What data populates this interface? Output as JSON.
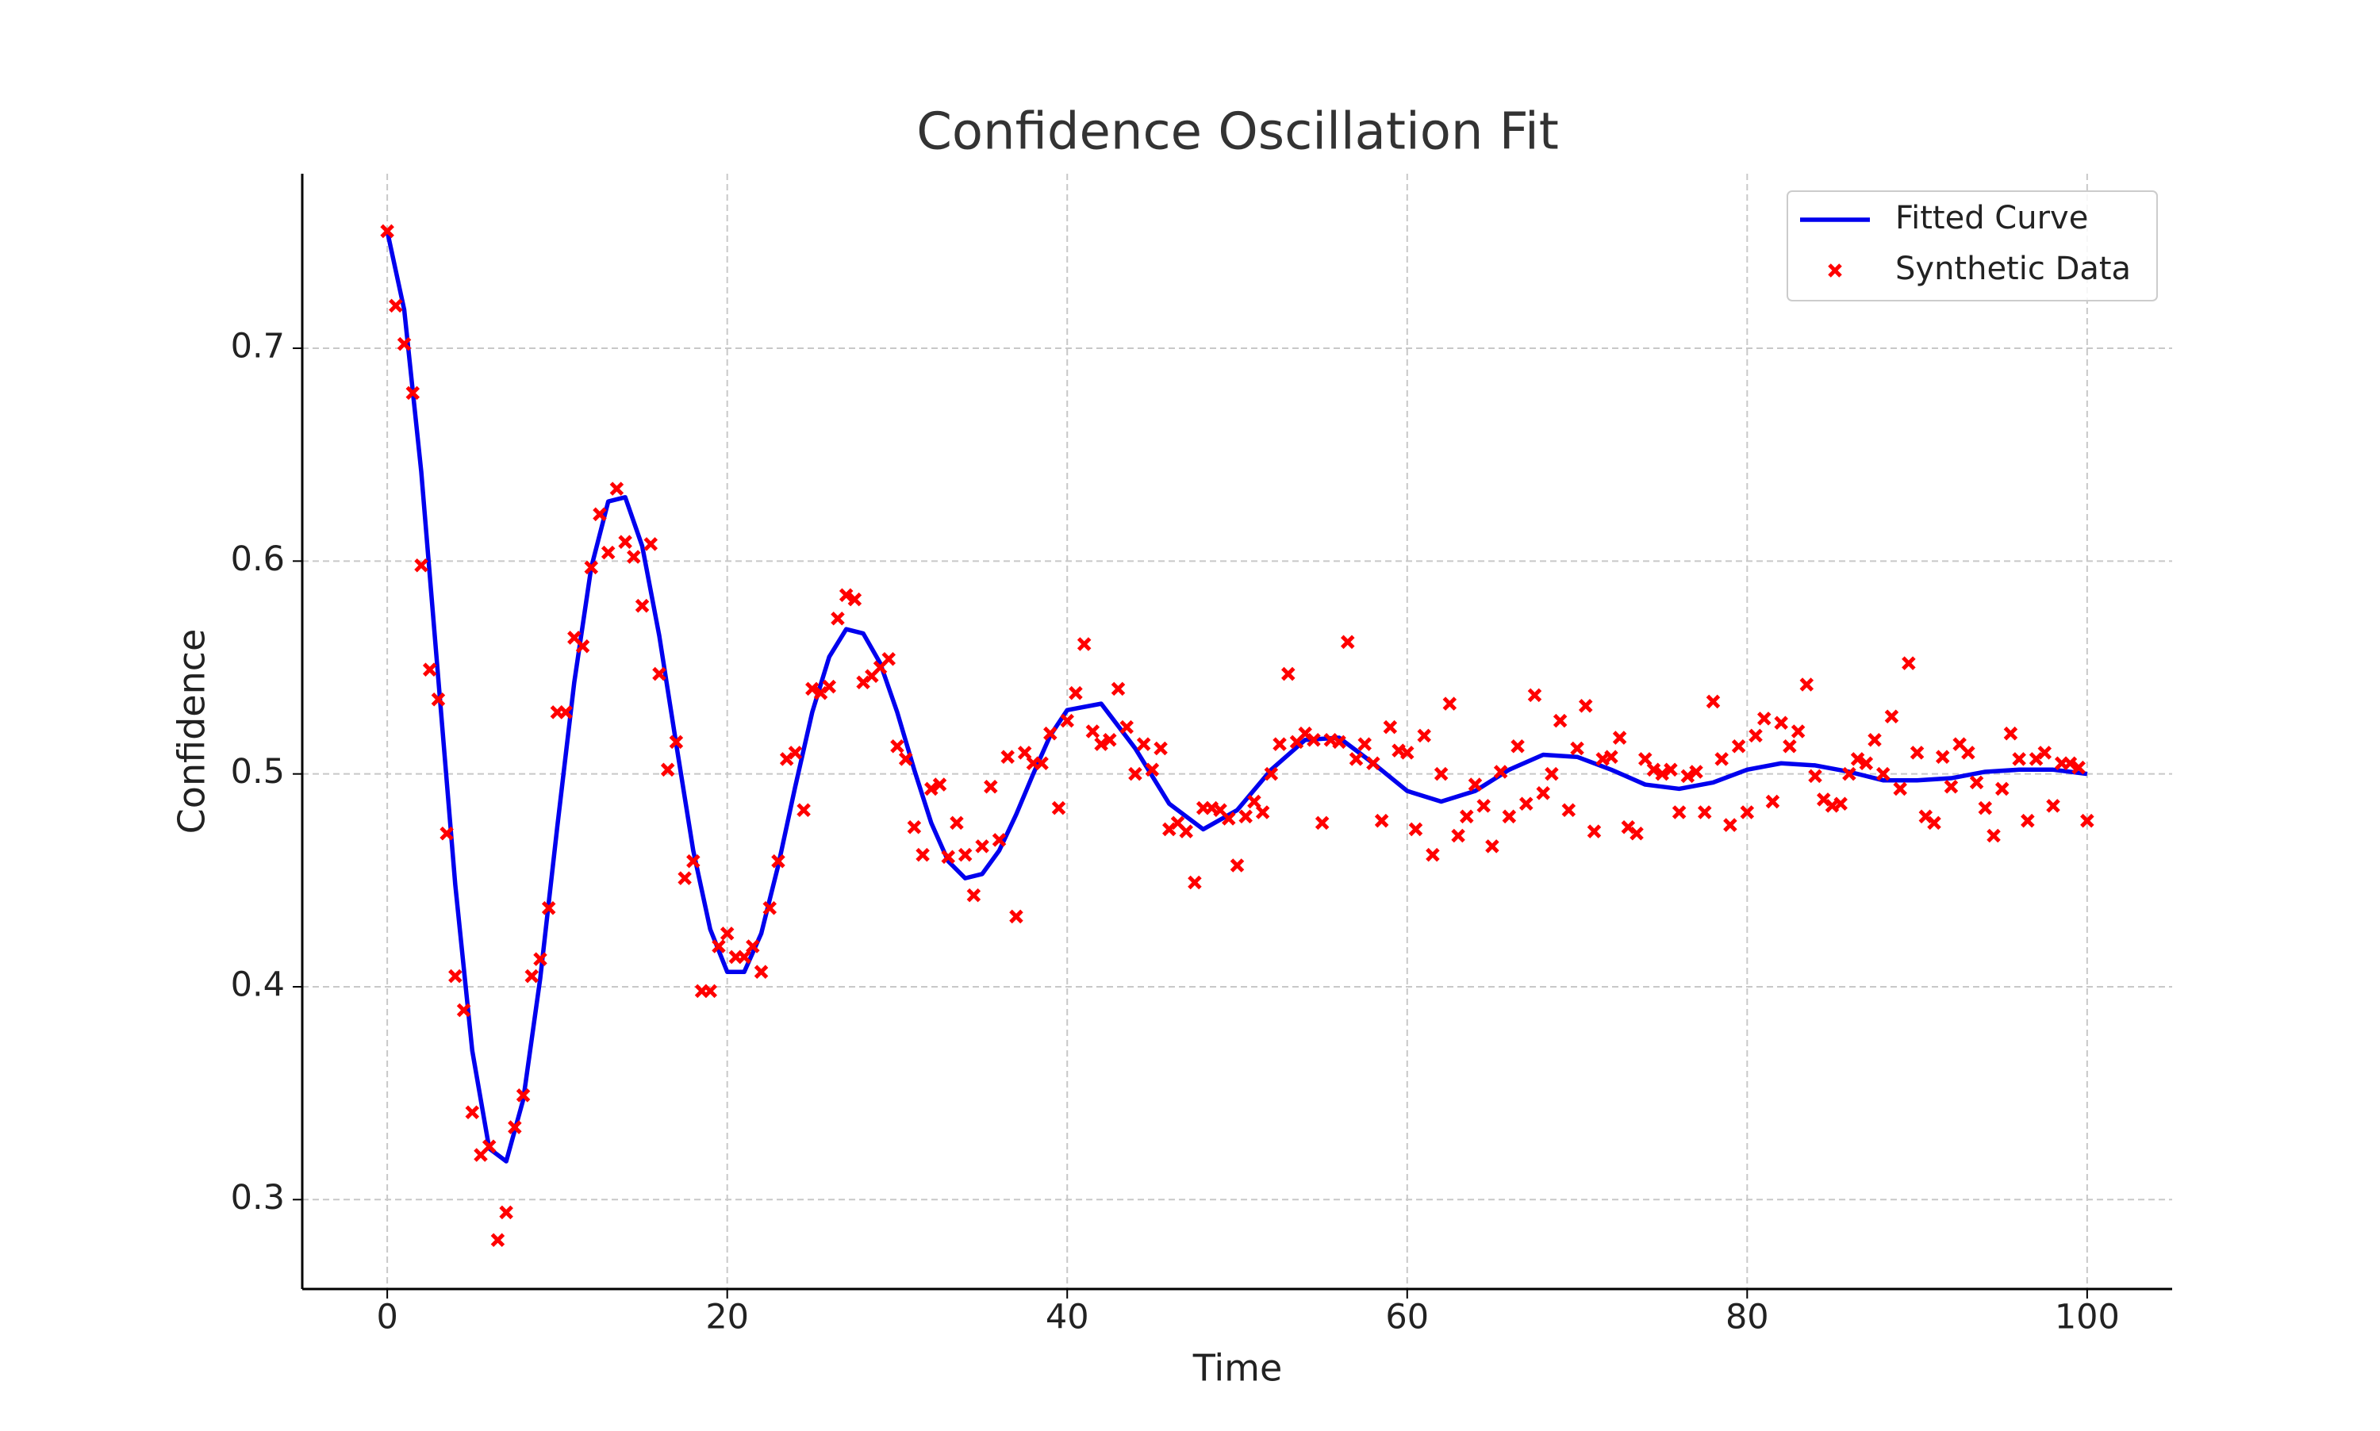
{
  "chart_data": {
    "type": "line",
    "title": "Confidence Oscillation Fit",
    "x_label": "Time",
    "y_label": "Confidence",
    "xlim": [
      -5,
      105
    ],
    "ylim": [
      0.258,
      0.782
    ],
    "xticks": [
      0,
      20,
      40,
      60,
      80,
      100
    ],
    "yticks": [
      0.3,
      0.4,
      0.5,
      0.6,
      0.7
    ],
    "grid": true,
    "legend": "upper right",
    "series": [
      {
        "name": "Fitted Curve",
        "type": "line",
        "color": "#0000ee",
        "x": [
          0,
          1,
          2,
          3,
          4,
          5,
          6,
          7,
          8,
          9,
          10,
          11,
          12,
          13,
          14,
          15,
          16,
          17,
          18,
          19,
          20,
          21,
          22,
          23,
          24,
          25,
          26,
          27,
          28,
          29,
          30,
          31,
          32,
          33,
          34,
          35,
          36,
          37,
          38,
          39,
          40,
          42,
          44,
          46,
          48,
          50,
          52,
          54,
          56,
          58,
          60,
          62,
          64,
          66,
          68,
          70,
          72,
          74,
          76,
          78,
          80,
          82,
          84,
          86,
          88,
          90,
          92,
          94,
          96,
          98,
          100
        ],
        "values": [
          0.755,
          0.718,
          0.642,
          0.545,
          0.448,
          0.37,
          0.324,
          0.318,
          0.347,
          0.404,
          0.475,
          0.543,
          0.597,
          0.628,
          0.63,
          0.607,
          0.565,
          0.514,
          0.464,
          0.427,
          0.407,
          0.407,
          0.425,
          0.457,
          0.494,
          0.529,
          0.555,
          0.568,
          0.566,
          0.552,
          0.529,
          0.502,
          0.477,
          0.459,
          0.451,
          0.453,
          0.464,
          0.481,
          0.5,
          0.518,
          0.53,
          0.533,
          0.512,
          0.486,
          0.474,
          0.483,
          0.502,
          0.516,
          0.517,
          0.505,
          0.492,
          0.487,
          0.492,
          0.502,
          0.509,
          0.508,
          0.502,
          0.495,
          0.493,
          0.496,
          0.502,
          0.505,
          0.504,
          0.501,
          0.497,
          0.497,
          0.498,
          0.501,
          0.502,
          0.502,
          0.5
        ]
      },
      {
        "name": "Synthetic Data",
        "type": "scatter",
        "color": "#ff0000",
        "x": [
          0,
          0.5,
          1,
          1.5,
          2,
          2.5,
          3,
          3.5,
          4,
          4.5,
          5,
          5.5,
          6,
          6.5,
          7,
          7.5,
          8,
          8.5,
          9,
          9.5,
          10,
          10.5,
          11,
          11.5,
          12,
          12.5,
          13,
          13.5,
          14,
          14.5,
          15,
          15.5,
          16,
          16.5,
          17,
          17.5,
          18,
          18.5,
          19,
          19.5,
          20,
          20.5,
          21,
          21.5,
          22,
          22.5,
          23,
          23.5,
          24,
          24.5,
          25,
          25.5,
          26,
          26.5,
          27,
          27.5,
          28,
          28.5,
          29,
          29.5,
          30,
          30.5,
          31,
          31.5,
          32,
          32.5,
          33,
          33.5,
          34,
          34.5,
          35,
          35.5,
          36,
          36.5,
          37,
          37.5,
          38,
          38.5,
          39,
          39.5,
          40,
          40.5,
          41,
          41.5,
          42,
          42.5,
          43,
          43.5,
          44,
          44.5,
          45,
          45.5,
          46,
          46.5,
          47,
          47.5,
          48,
          48.5,
          49,
          49.5,
          50,
          50.5,
          51,
          51.5,
          52,
          52.5,
          53,
          53.5,
          54,
          54.5,
          55,
          55.5,
          56,
          56.5,
          57,
          57.5,
          58,
          58.5,
          59,
          59.5,
          60,
          60.5,
          61,
          61.5,
          62,
          62.5,
          63,
          63.5,
          64,
          64.5,
          65,
          65.5,
          66,
          66.5,
          67,
          67.5,
          68,
          68.5,
          69,
          69.5,
          70,
          70.5,
          71,
          71.5,
          72,
          72.5,
          73,
          73.5,
          74,
          74.5,
          75,
          75.5,
          76,
          76.5,
          77,
          77.5,
          78,
          78.5,
          79,
          79.5,
          80,
          80.5,
          81,
          81.5,
          82,
          82.5,
          83,
          83.5,
          84,
          84.5,
          85,
          85.5,
          86,
          86.5,
          87,
          87.5,
          88,
          88.5,
          89,
          89.5,
          90,
          90.5,
          91,
          91.5,
          92,
          92.5,
          93,
          93.5,
          94,
          94.5,
          95,
          95.5,
          96,
          96.5,
          97,
          97.5,
          98,
          98.5,
          99,
          99.5,
          100
        ],
        "values": [
          0.755,
          0.72,
          0.702,
          0.679,
          0.598,
          0.549,
          0.535,
          0.472,
          0.405,
          0.389,
          0.341,
          0.321,
          0.325,
          0.281,
          0.294,
          0.334,
          0.349,
          0.405,
          0.413,
          0.437,
          0.529,
          0.529,
          0.564,
          0.56,
          0.597,
          0.622,
          0.604,
          0.634,
          0.609,
          0.602,
          0.579,
          0.608,
          0.547,
          0.502,
          0.515,
          0.451,
          0.459,
          0.398,
          0.398,
          0.419,
          0.425,
          0.414,
          0.414,
          0.419,
          0.407,
          0.437,
          0.459,
          0.507,
          0.51,
          0.483,
          0.54,
          0.538,
          0.541,
          0.573,
          0.584,
          0.582,
          0.543,
          0.546,
          0.55,
          0.554,
          0.513,
          0.507,
          0.475,
          0.462,
          0.493,
          0.495,
          0.461,
          0.477,
          0.462,
          0.443,
          0.466,
          0.494,
          0.469,
          0.508,
          0.433,
          0.51,
          0.505,
          0.505,
          0.519,
          0.484,
          0.525,
          0.538,
          0.561,
          0.52,
          0.514,
          0.516,
          0.54,
          0.522,
          0.5,
          0.514,
          0.502,
          0.512,
          0.474,
          0.477,
          0.473,
          0.449,
          0.484,
          0.484,
          0.483,
          0.479,
          0.457,
          0.48,
          0.487,
          0.482,
          0.5,
          0.514,
          0.547,
          0.515,
          0.519,
          0.516,
          0.477,
          0.516,
          0.515,
          0.562,
          0.507,
          0.514,
          0.505,
          0.478,
          0.522,
          0.511,
          0.51,
          0.474,
          0.518,
          0.462,
          0.5,
          0.533,
          0.471,
          0.48,
          0.495,
          0.485,
          0.466,
          0.501,
          0.48,
          0.513,
          0.486,
          0.537,
          0.491,
          0.5,
          0.525,
          0.483,
          0.512,
          0.532,
          0.473,
          0.507,
          0.508,
          0.517,
          0.475,
          0.472,
          0.507,
          0.502,
          0.5,
          0.502,
          0.482,
          0.499,
          0.501,
          0.482,
          0.534,
          0.507,
          0.476,
          0.513,
          0.482,
          0.518,
          0.526,
          0.487,
          0.524,
          0.513,
          0.52,
          0.542,
          0.499,
          0.488,
          0.485,
          0.486,
          0.5,
          0.507,
          0.505,
          0.516,
          0.5,
          0.527,
          0.493,
          0.552,
          0.51,
          0.48,
          0.477,
          0.508,
          0.494,
          0.514,
          0.51,
          0.496,
          0.484,
          0.471,
          0.493,
          0.519,
          0.507,
          0.478,
          0.507,
          0.51,
          0.485,
          0.505,
          0.505,
          0.503,
          0.478
        ]
      }
    ]
  }
}
